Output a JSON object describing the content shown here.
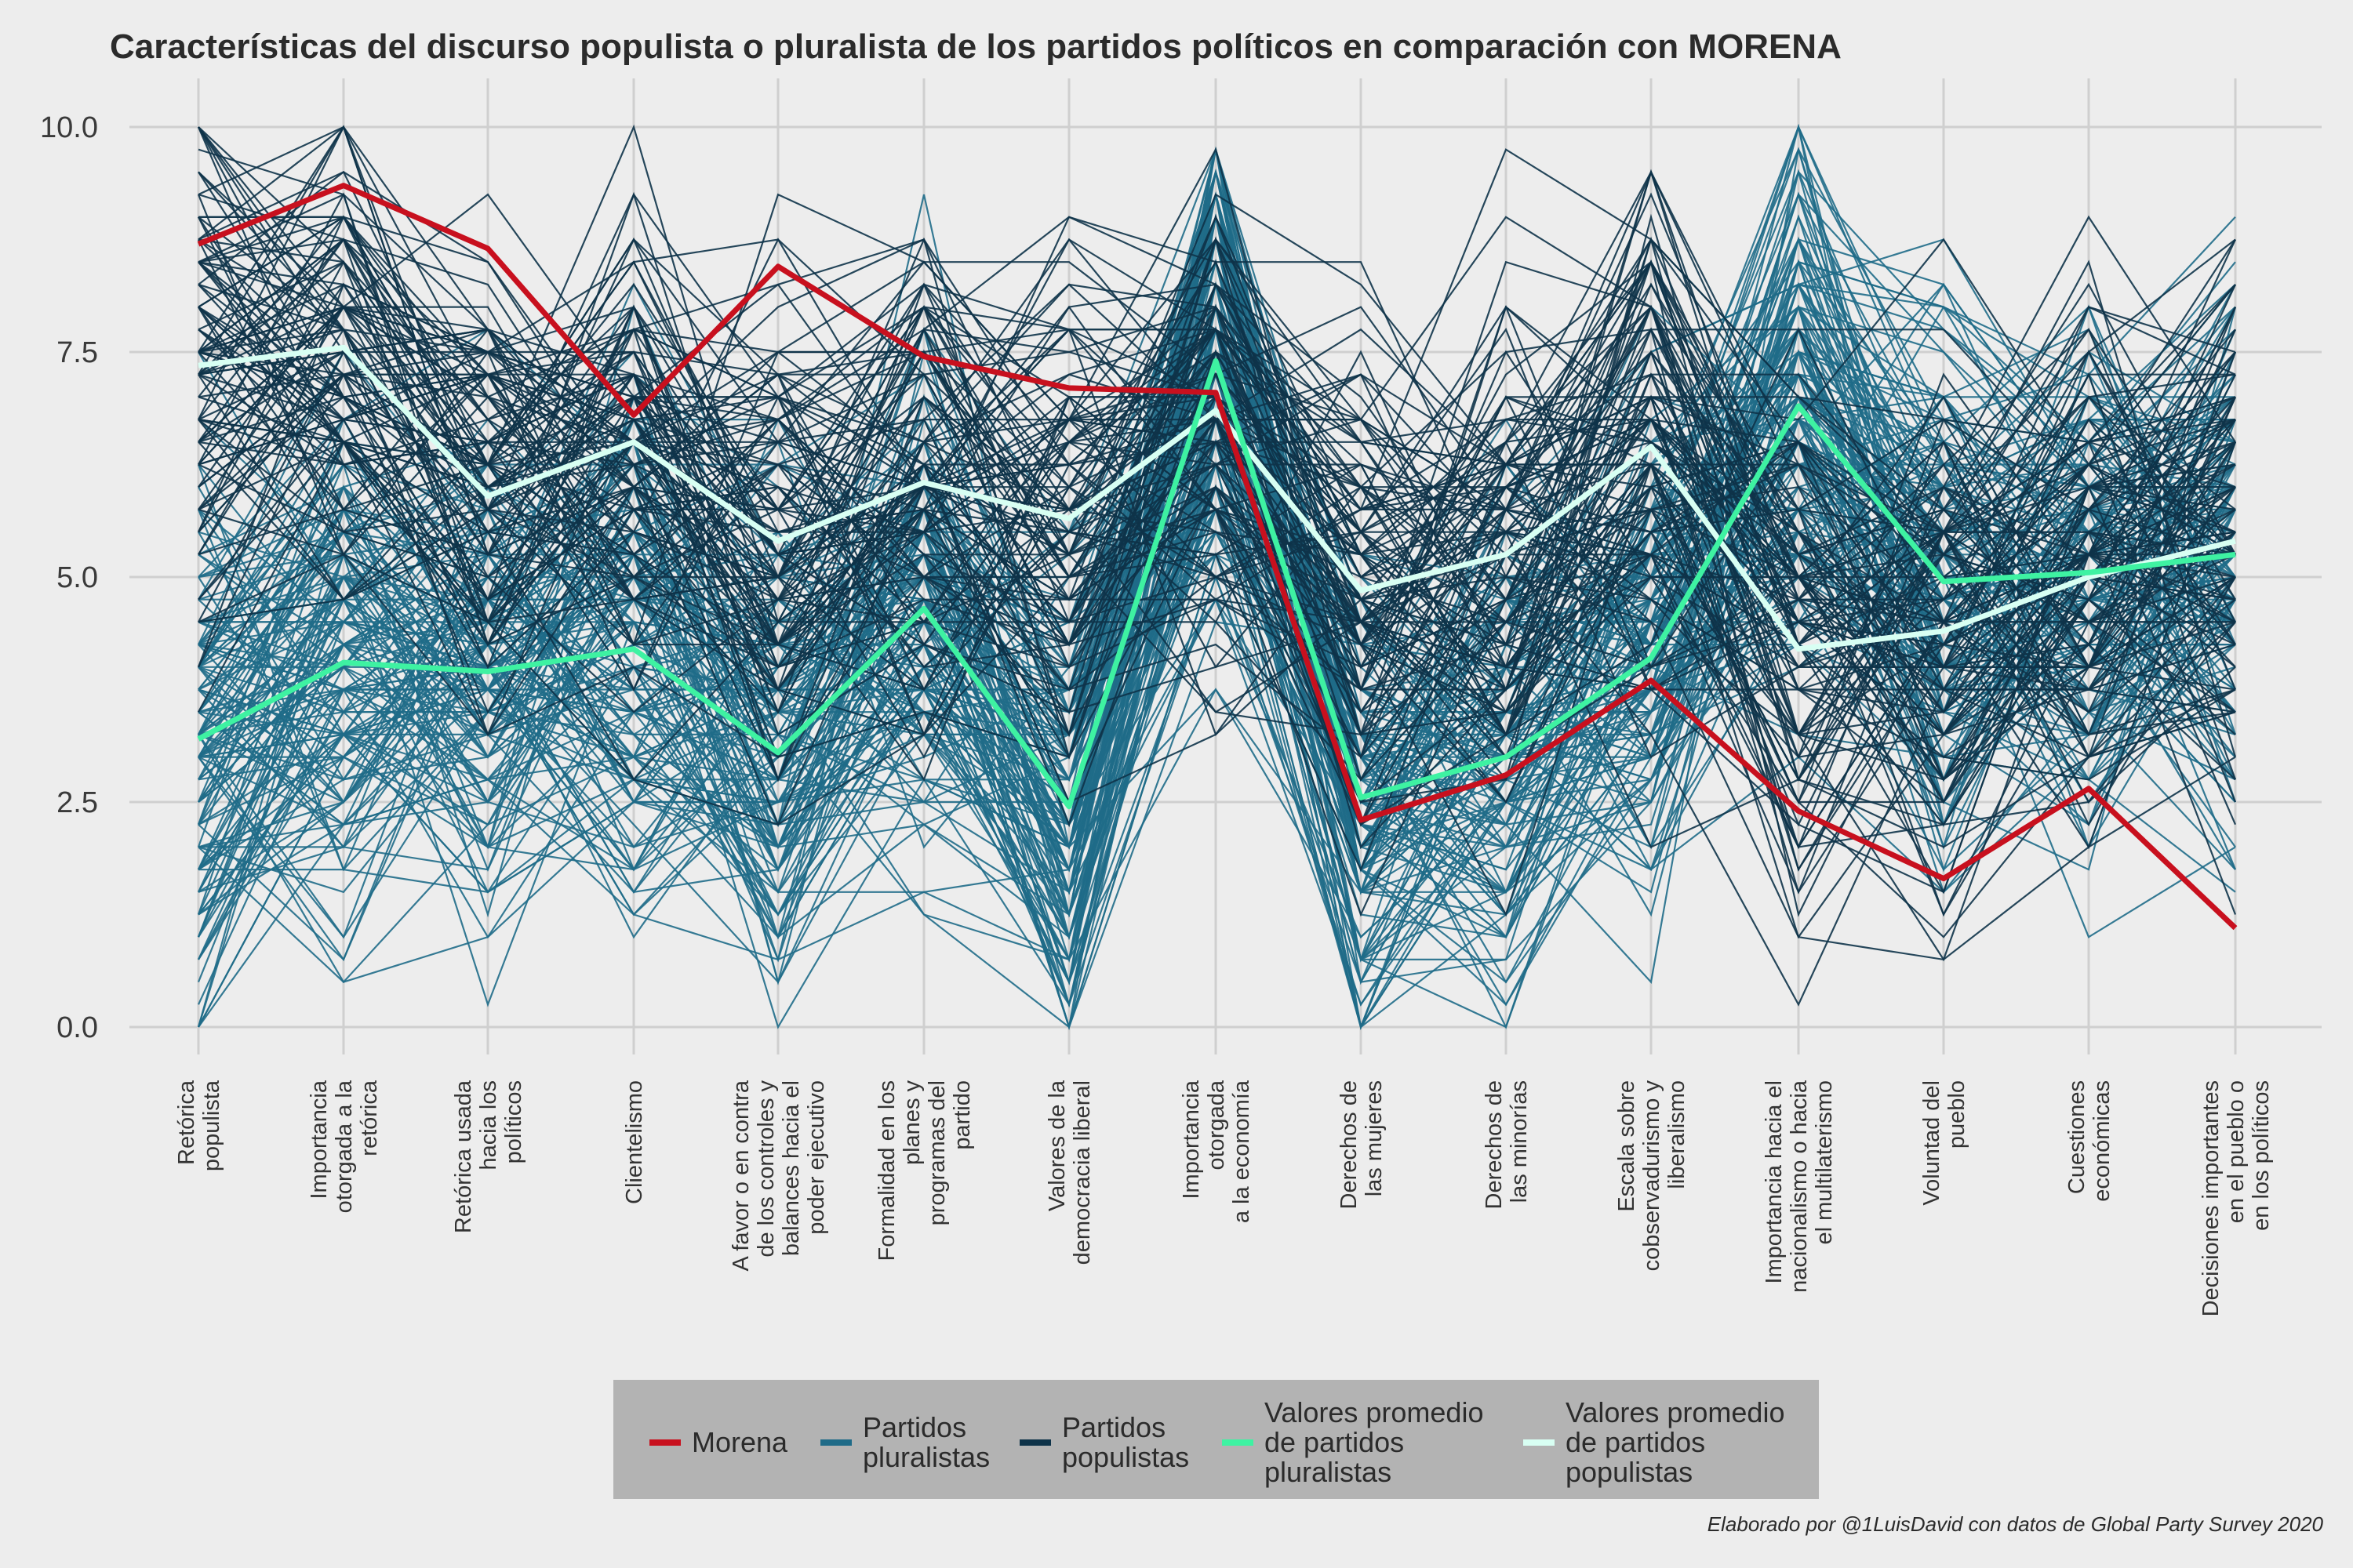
{
  "chart_data": {
    "type": "line",
    "title": "Características del discurso populista o pluralista de los partidos políticos en comparación con MORENA",
    "caption": "Elaborado por @1LuisDavid con datos de Global Party Survey 2020",
    "ylim": [
      0,
      10
    ],
    "yticks": [
      "0.0",
      "2.5",
      "5.0",
      "7.5",
      "10.0"
    ],
    "grid": true,
    "legend_position": "bottom",
    "categories": [
      [
        "Retórica",
        "populista"
      ],
      [
        "Importancia",
        "otorgada a la",
        "retórica"
      ],
      [
        "Retórica usada",
        "hacia los",
        "políticos"
      ],
      [
        "Clientelismo"
      ],
      [
        "A favor o en contra",
        "de los controles y",
        "balances hacia el",
        "poder ejecutivo"
      ],
      [
        "Formalidad en los",
        "planes y",
        "programas del",
        "partido"
      ],
      [
        "Valores de la",
        "democracia liberal"
      ],
      [
        "Importancia",
        "otorgada",
        "a la economía"
      ],
      [
        "Derechos de",
        "las mujeres"
      ],
      [
        "Derechos de",
        "las minorías"
      ],
      [
        "Escala sobre",
        "cobservadurismo y",
        "liberalismo"
      ],
      [
        "Importancia hacia el",
        "nacionalismo o hacia",
        "el multilaterismo"
      ],
      [
        "Voluntad del",
        "pueblo"
      ],
      [
        "Cuestiones",
        "económicas"
      ],
      [
        "Decisiones importantes",
        "en el pueblo o",
        "en los políticos"
      ]
    ],
    "series": [
      {
        "name": "Morena",
        "color": "#c8101e",
        "values": [
          8.7,
          9.35,
          8.65,
          6.8,
          8.45,
          7.45,
          7.1,
          7.05,
          2.3,
          2.8,
          3.85,
          2.4,
          1.65,
          2.65,
          1.1
        ]
      },
      {
        "name": "Valores promedio de partidos pluralistas",
        "color": "#3ef2a2",
        "values": [
          3.2,
          4.05,
          3.95,
          4.2,
          3.05,
          4.65,
          2.45,
          7.4,
          2.55,
          3.0,
          4.1,
          6.9,
          4.95,
          5.05,
          5.25
        ]
      },
      {
        "name": "Valores promedio de partidos populistas",
        "color": "#d8fff3",
        "values": [
          7.35,
          7.55,
          5.9,
          6.5,
          5.4,
          6.05,
          5.65,
          6.85,
          4.85,
          5.25,
          6.45,
          4.2,
          4.4,
          5.0,
          5.4
        ]
      },
      {
        "name": "Partidos pluralistas",
        "color": "#1f6b88",
        "mean": [
          3.2,
          4.05,
          3.95,
          4.2,
          3.05,
          4.65,
          2.45,
          7.4,
          2.55,
          3.0,
          4.1,
          6.9,
          4.95,
          5.05,
          5.25
        ],
        "count": 160
      },
      {
        "name": "Partidos populistas",
        "color": "#0e3349",
        "mean": [
          7.35,
          7.55,
          5.9,
          6.5,
          5.4,
          6.05,
          5.65,
          6.85,
          4.85,
          5.25,
          6.45,
          4.2,
          4.4,
          5.0,
          5.4
        ],
        "count": 120
      }
    ],
    "legend": [
      {
        "label": [
          "Morena"
        ],
        "color": "#c8101e"
      },
      {
        "label": [
          "Partidos",
          "pluralistas"
        ],
        "color": "#1f6b88"
      },
      {
        "label": [
          "Partidos",
          "populistas"
        ],
        "color": "#0e3349"
      },
      {
        "label": [
          "Valores promedio",
          "de partidos",
          "pluralistas"
        ],
        "color": "#3ef2a2"
      },
      {
        "label": [
          "Valores promedio",
          "de partidos",
          "populistas"
        ],
        "color": "#d8fff3"
      }
    ]
  }
}
